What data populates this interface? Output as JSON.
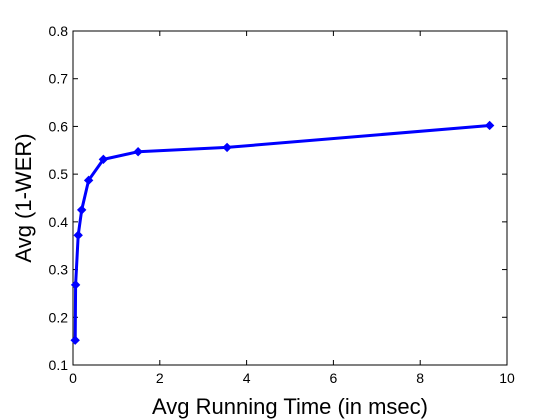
{
  "chart_data": {
    "type": "line",
    "title": "",
    "xlabel": "Avg Running Time (in msec)",
    "ylabel": "Avg (1-WER)",
    "xlim": [
      0,
      10
    ],
    "ylim": [
      0.1,
      0.8
    ],
    "xticks": [
      0,
      2,
      4,
      6,
      8,
      10
    ],
    "yticks": [
      0.1,
      0.2,
      0.3,
      0.4,
      0.5,
      0.6,
      0.7,
      0.8
    ],
    "xtick_labels": [
      "0",
      "2",
      "4",
      "6",
      "8",
      "10"
    ],
    "ytick_labels": [
      "0.1",
      "0.2",
      "0.3",
      "0.4",
      "0.5",
      "0.6",
      "0.7",
      "0.8"
    ],
    "grid": false,
    "legend": "none",
    "series": [
      {
        "color": "#0000ff",
        "marker": "diamond",
        "x": [
          0.05,
          0.06,
          0.12,
          0.2,
          0.36,
          0.7,
          1.5,
          3.55,
          9.6
        ],
        "y": [
          0.152,
          0.268,
          0.372,
          0.425,
          0.487,
          0.531,
          0.547,
          0.556,
          0.602
        ]
      }
    ]
  }
}
